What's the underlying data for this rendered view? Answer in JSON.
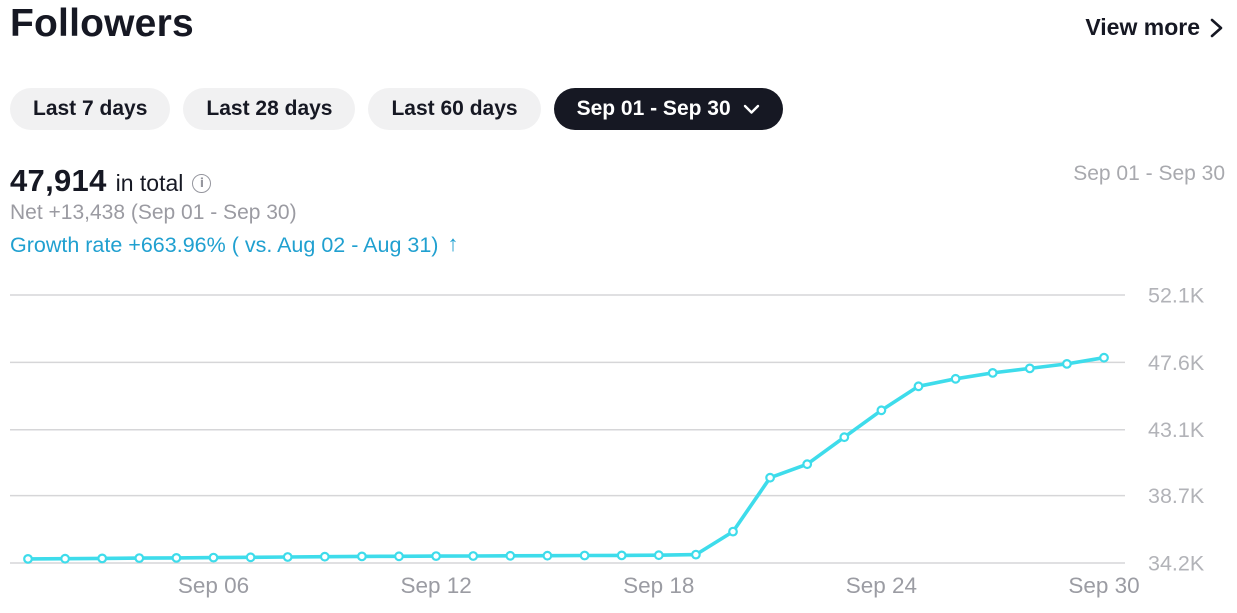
{
  "header": {
    "title": "Followers",
    "view_more_label": "View more"
  },
  "icons": {
    "view_more_chevron": "chevron-right",
    "active_pill_chevron": "chevron-down",
    "total_info": "info-circle",
    "growth_arrow": "arrow-up"
  },
  "filters": {
    "options": [
      {
        "label": "Last 7 days",
        "active": false,
        "has_dropdown": false
      },
      {
        "label": "Last 28 days",
        "active": false,
        "has_dropdown": false
      },
      {
        "label": "Last 60 days",
        "active": false,
        "has_dropdown": false
      },
      {
        "label": "Sep 01 - Sep 30",
        "active": true,
        "has_dropdown": true
      }
    ]
  },
  "summary": {
    "total_value": "47,914",
    "total_suffix": "in total",
    "info_glyph": "i",
    "net_change": "Net +13,438 (Sep 01 - Sep 30)",
    "growth_rate": "Growth rate +663.96% ( vs. Aug 02 - Aug 31)",
    "growth_arrow": "↑"
  },
  "chart": {
    "range_label": "Sep 01 - Sep 30"
  },
  "chart_data": {
    "type": "line",
    "title": "Followers over time (Sep 01 - Sep 30)",
    "x": [
      "Sep 01",
      "Sep 02",
      "Sep 03",
      "Sep 04",
      "Sep 05",
      "Sep 06",
      "Sep 07",
      "Sep 08",
      "Sep 09",
      "Sep 10",
      "Sep 11",
      "Sep 12",
      "Sep 13",
      "Sep 14",
      "Sep 15",
      "Sep 16",
      "Sep 17",
      "Sep 18",
      "Sep 19",
      "Sep 20",
      "Sep 21",
      "Sep 22",
      "Sep 23",
      "Sep 24",
      "Sep 25",
      "Sep 26",
      "Sep 27",
      "Sep 28",
      "Sep 29",
      "Sep 30"
    ],
    "values": [
      34476,
      34490,
      34510,
      34525,
      34540,
      34560,
      34580,
      34600,
      34620,
      34640,
      34650,
      34660,
      34670,
      34680,
      34690,
      34700,
      34710,
      34720,
      34760,
      36300,
      39900,
      40800,
      42600,
      44400,
      46000,
      46500,
      46900,
      47200,
      47500,
      47914
    ],
    "x_tick_labels": [
      "Sep 06",
      "Sep 12",
      "Sep 18",
      "Sep 24",
      "Sep 30"
    ],
    "x_tick_indices": [
      5,
      11,
      17,
      23,
      29
    ],
    "y_tick_labels": [
      "52.1K",
      "47.6K",
      "43.1K",
      "38.7K",
      "34.2K"
    ],
    "y_tick_values": [
      52100,
      47600,
      43100,
      38700,
      34200
    ],
    "ylim": [
      34200,
      52100
    ],
    "xlabel": "",
    "ylabel": "",
    "grid": true,
    "legend_position": "none",
    "line_color": "#3edceb",
    "marker_style": "hollow-circle",
    "grid_color": "#d6d6d8",
    "y_tick_color": "#b2b3b8",
    "x_tick_color": "#9b9ca3"
  }
}
